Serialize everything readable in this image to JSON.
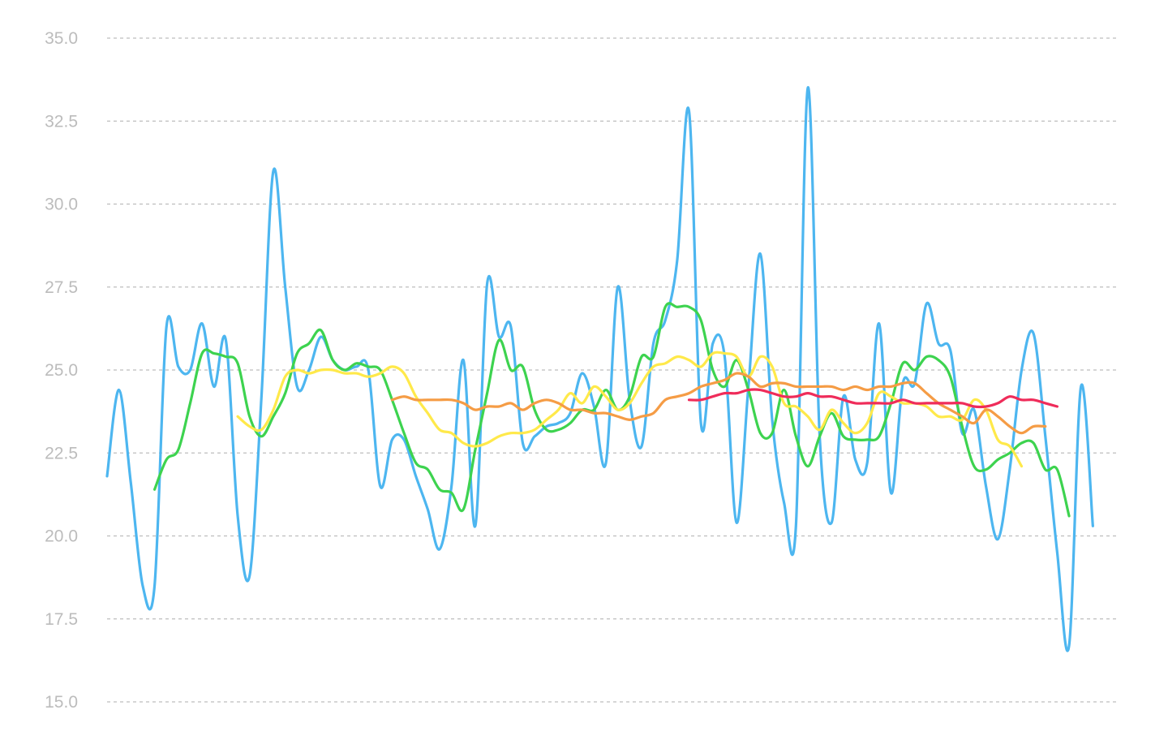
{
  "chart_data": {
    "type": "line",
    "title": "",
    "xlabel": "",
    "ylabel": "",
    "ylim": [
      15,
      35
    ],
    "y_ticks": [
      "15.0",
      "17.5",
      "20.0",
      "22.5",
      "25.0",
      "27.5",
      "30.0",
      "32.5",
      "35.0"
    ],
    "x_count": 85,
    "grid": true,
    "legend": "none",
    "series": [
      {
        "color": "#4db6f0",
        "start": 0,
        "values": [
          21.8,
          24.4,
          21.6,
          18.5,
          18.5,
          26.3,
          25.1,
          25.0,
          26.4,
          24.5,
          25.9,
          20.6,
          18.8,
          24.2,
          31.0,
          27.5,
          24.5,
          25.0,
          26.0,
          25.3,
          25.0,
          25.1,
          25.0,
          21.5,
          22.9,
          22.9,
          21.8,
          20.8,
          19.6,
          21.5,
          25.3,
          20.3,
          27.6,
          26.0,
          26.3,
          22.8,
          23.0,
          23.3,
          23.4,
          23.7,
          24.9,
          23.9,
          22.2,
          27.5,
          24.1,
          22.7,
          25.8,
          26.5,
          28.3,
          32.8,
          23.4,
          25.8,
          25.4,
          20.4,
          24.5,
          28.5,
          23.5,
          21.0,
          20.3,
          33.5,
          23.0,
          20.4,
          24.2,
          22.3,
          22.2,
          26.4,
          21.3,
          24.6,
          24.6,
          27.0,
          25.8,
          25.6,
          23.1,
          23.8,
          21.5,
          19.9,
          22.0,
          25.0,
          26.1,
          23.0,
          19.5,
          16.7,
          24.5,
          20.3
        ]
      },
      {
        "color": "#3dd34f",
        "start": 4,
        "values": [
          21.4,
          22.3,
          22.6,
          24.0,
          25.5,
          25.5,
          25.4,
          25.2,
          23.6,
          23.0,
          23.6,
          24.3,
          25.5,
          25.8,
          26.2,
          25.3,
          25.0,
          25.2,
          25.1,
          25.0,
          24.1,
          23.1,
          22.2,
          22.0,
          21.4,
          21.3,
          20.8,
          22.6,
          24.3,
          25.9,
          25.0,
          25.1,
          23.8,
          23.2,
          23.2,
          23.4,
          23.8,
          23.8,
          24.4,
          23.8,
          24.2,
          25.4,
          25.4,
          26.9,
          26.9,
          26.9,
          26.5,
          25.0,
          24.5,
          25.3,
          24.4,
          23.1,
          23.1,
          24.4,
          23.0,
          22.1,
          23.0,
          23.7,
          23.0,
          22.9,
          22.9,
          23.0,
          24.0,
          25.2,
          25.0,
          25.4,
          25.3,
          24.8,
          23.3,
          22.1,
          22.0,
          22.3,
          22.5,
          22.8,
          22.8,
          22.0,
          22.0,
          20.6
        ]
      },
      {
        "color": "#ffe94a",
        "start": 11,
        "values": [
          23.6,
          23.3,
          23.2,
          23.8,
          24.8,
          25.0,
          24.9,
          25.0,
          25.0,
          24.9,
          24.9,
          24.8,
          24.9,
          25.1,
          24.9,
          24.2,
          23.7,
          23.2,
          23.1,
          22.8,
          22.7,
          22.8,
          23.0,
          23.1,
          23.1,
          23.2,
          23.5,
          23.8,
          24.3,
          24.0,
          24.5,
          24.2,
          23.8,
          24.0,
          24.6,
          25.1,
          25.2,
          25.4,
          25.3,
          25.1,
          25.5,
          25.5,
          25.4,
          24.8,
          25.4,
          25.1,
          24.0,
          23.9,
          23.6,
          23.2,
          23.8,
          23.4,
          23.1,
          23.4,
          24.3,
          24.2,
          24.0,
          24.0,
          23.9,
          23.6,
          23.6,
          23.5,
          24.1,
          23.8,
          22.9,
          22.7,
          22.1
        ]
      },
      {
        "color": "#f59c45",
        "start": 24,
        "values": [
          24.1,
          24.2,
          24.1,
          24.1,
          24.1,
          24.1,
          24.0,
          23.8,
          23.9,
          23.9,
          24.0,
          23.8,
          24.0,
          24.1,
          24.0,
          23.8,
          23.8,
          23.7,
          23.7,
          23.6,
          23.5,
          23.6,
          23.7,
          24.1,
          24.2,
          24.3,
          24.5,
          24.6,
          24.7,
          24.9,
          24.8,
          24.5,
          24.6,
          24.6,
          24.5,
          24.5,
          24.5,
          24.5,
          24.4,
          24.5,
          24.4,
          24.5,
          24.5,
          24.6,
          24.6,
          24.3,
          24.0,
          23.8,
          23.6,
          23.4,
          23.8,
          23.6,
          23.3,
          23.1,
          23.3,
          23.3
        ]
      },
      {
        "color": "#ef2c5a",
        "start": 49,
        "values": [
          24.1,
          24.1,
          24.2,
          24.3,
          24.3,
          24.4,
          24.4,
          24.3,
          24.2,
          24.2,
          24.3,
          24.2,
          24.2,
          24.1,
          24.0,
          24.0,
          24.0,
          24.0,
          24.1,
          24.0,
          24.0,
          24.0,
          24.0,
          24.0,
          23.9,
          23.9,
          24.0,
          24.2,
          24.1,
          24.1,
          24.0,
          23.9
        ]
      }
    ]
  }
}
